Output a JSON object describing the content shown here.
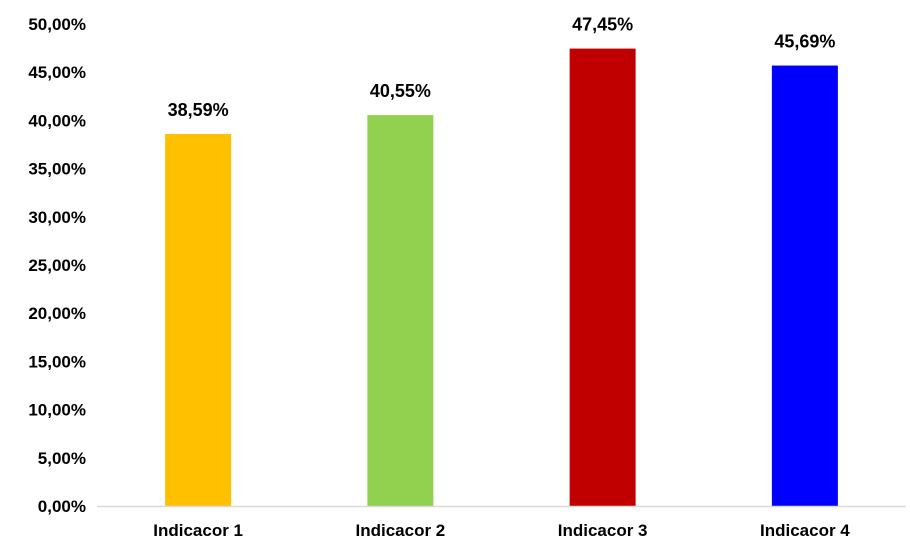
{
  "chart_data": {
    "type": "bar",
    "title": "",
    "xlabel": "",
    "ylabel": "",
    "categories": [
      "Indicacor 1",
      "Indicacor 2",
      "Indicacor 3",
      "Indicacor 4"
    ],
    "values": [
      38.59,
      40.55,
      47.45,
      45.69
    ],
    "data_labels": [
      "38,59%",
      "40,55%",
      "47,45%",
      "45,69%"
    ],
    "colors": [
      "#FFC000",
      "#92D050",
      "#C00000",
      "#0000FF"
    ],
    "ylim": [
      0,
      50
    ],
    "yticks": [
      0,
      5,
      10,
      15,
      20,
      25,
      30,
      35,
      40,
      45,
      50
    ],
    "ytick_labels": [
      "0,00%",
      "5,00%",
      "10,00%",
      "15,00%",
      "20,00%",
      "25,00%",
      "30,00%",
      "35,00%",
      "40,00%",
      "45,00%",
      "50,00%"
    ],
    "grid": false,
    "legend": "none",
    "axis_line_color": "#D9D9D9"
  }
}
